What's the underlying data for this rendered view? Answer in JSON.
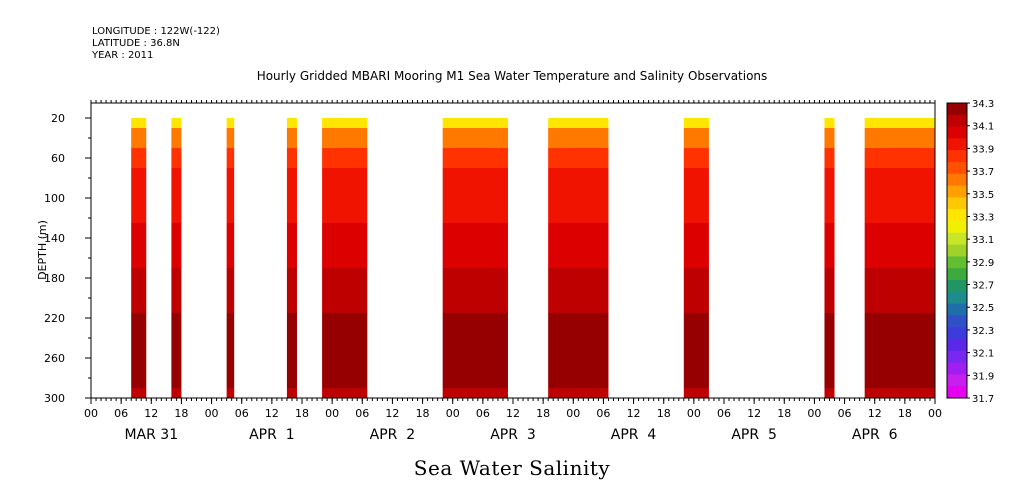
{
  "header": {
    "longitude": "LONGITUDE : 122W(-122)",
    "latitude": "LATITUDE : 36.8N",
    "year": "YEAR : 2011"
  },
  "chart_data": {
    "type": "heatmap",
    "title": "Hourly Gridded MBARI Mooring M1 Sea Water Temperature and Salinity Observations",
    "xlabel": "Sea Water Salinity",
    "ylabel": "DEPTH (m)",
    "y_ticks": [
      "20",
      "60",
      "100",
      "140",
      "180",
      "220",
      "260",
      "300"
    ],
    "y_tick_values": [
      20,
      60,
      100,
      140,
      180,
      220,
      260,
      300
    ],
    "ylim": [
      300,
      5
    ],
    "x_hour_ticks": [
      "00",
      "06",
      "12",
      "18",
      "00",
      "06",
      "12",
      "18",
      "00",
      "06",
      "12",
      "18",
      "00",
      "06",
      "12",
      "18",
      "00",
      "06",
      "12",
      "18",
      "00",
      "06",
      "12",
      "18",
      "00",
      "06",
      "12",
      "18",
      "00"
    ],
    "x_day_labels": [
      "MAR 31",
      "APR  1",
      "APR  2",
      "APR  3",
      "APR  4",
      "APR  5",
      "APR  6"
    ],
    "x_units": "hours since MAR 31 00:00",
    "xlim": [
      0,
      168
    ],
    "colorbar": {
      "labels": [
        "34.3",
        "34.1",
        "33.9",
        "33.7",
        "33.5",
        "33.3",
        "33.1",
        "32.9",
        "32.7",
        "32.5",
        "32.3",
        "32.1",
        "31.9",
        "31.7"
      ],
      "colors": [
        "#960000",
        "#be0000",
        "#dc0000",
        "#f01400",
        "#ff3200",
        "#ff5000",
        "#ff7800",
        "#ffa000",
        "#ffc800",
        "#ffe600",
        "#f0f000",
        "#c8e628",
        "#a0d228",
        "#64be32",
        "#3caa3c",
        "#209664",
        "#1e8c8c",
        "#1e6eaa",
        "#3050c8",
        "#3c3cdc",
        "#5a28e6",
        "#7828f0",
        "#a01ef0",
        "#c81ef0",
        "#e600f0"
      ]
    },
    "data_segments": [
      {
        "start_hour": 8,
        "end_hour": 11
      },
      {
        "start_hour": 16,
        "end_hour": 18
      },
      {
        "start_hour": 27,
        "end_hour": 28.5
      },
      {
        "start_hour": 39,
        "end_hour": 41
      },
      {
        "start_hour": 46,
        "end_hour": 55
      },
      {
        "start_hour": 70,
        "end_hour": 83
      },
      {
        "start_hour": 91,
        "end_hour": 103
      },
      {
        "start_hour": 118,
        "end_hour": 123
      },
      {
        "start_hour": 146,
        "end_hour": 148
      },
      {
        "start_hour": 154,
        "end_hour": 169
      }
    ],
    "depth_profile": [
      {
        "depth": 20,
        "salinity": 33.35
      },
      {
        "depth": 40,
        "salinity": 33.7
      },
      {
        "depth": 60,
        "salinity": 33.85
      },
      {
        "depth": 80,
        "salinity": 33.95
      },
      {
        "depth": 110,
        "salinity": 34.0
      },
      {
        "depth": 140,
        "salinity": 34.1
      },
      {
        "depth": 200,
        "salinity": 34.15
      },
      {
        "depth": 230,
        "salinity": 34.25
      },
      {
        "depth": 280,
        "salinity": 34.3
      },
      {
        "depth": 300,
        "salinity": 34.2
      }
    ]
  }
}
